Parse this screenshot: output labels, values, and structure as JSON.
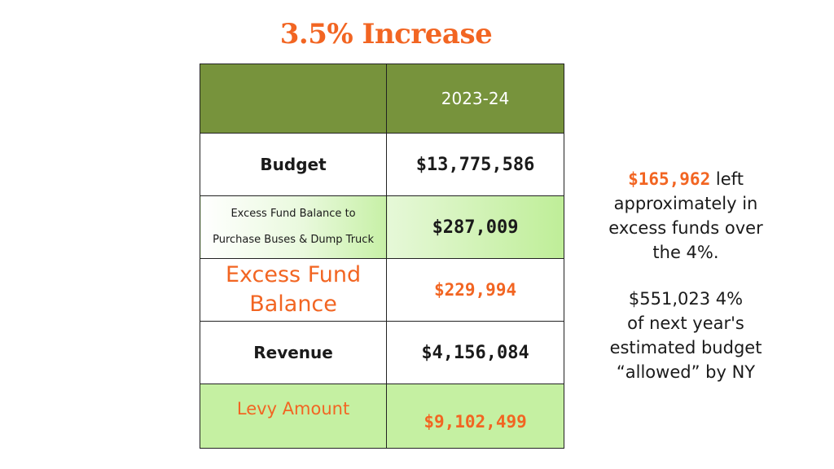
{
  "title": "3.5% Increase",
  "table": {
    "header": {
      "label": "",
      "year": "2023-24"
    },
    "rows": {
      "budget": {
        "label": "Budget",
        "value": "$13,775,586"
      },
      "excess_bus": {
        "label_line1": "Excess Fund Balance to",
        "label_line2": "Purchase Buses & Dump Truck",
        "value": "$287,009"
      },
      "excess_fund": {
        "label_line1": "Excess Fund",
        "label_line2": "Balance",
        "value": "$229,994"
      },
      "revenue": {
        "label": "Revenue",
        "value": "$4,156,084"
      },
      "levy": {
        "label": "Levy Amount",
        "value": "$9,102,499"
      }
    }
  },
  "notes": {
    "left_amount": "$165,962",
    "left_line1_rest": " left",
    "left_line2": "approximately in",
    "left_line3": "excess funds over",
    "left_line4": "the 4%.",
    "allowed_line1": "$551,023 4%",
    "allowed_line2": "of next year's",
    "allowed_line3": "estimated budget",
    "allowed_line4": "“allowed” by NY"
  },
  "colors": {
    "accent_orange": "#f26522",
    "header_green": "#77933c",
    "light_green": "#c5f0a2"
  }
}
